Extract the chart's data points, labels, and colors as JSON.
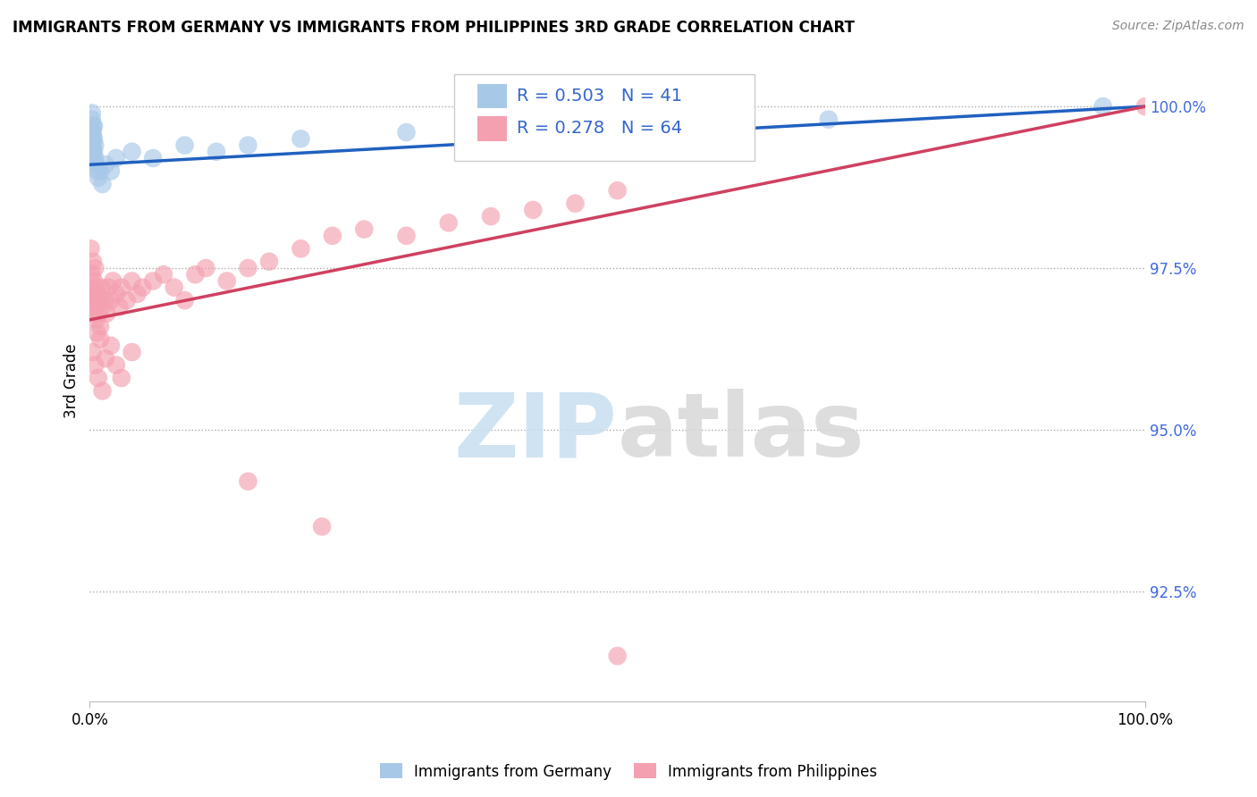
{
  "title": "IMMIGRANTS FROM GERMANY VS IMMIGRANTS FROM PHILIPPINES 3RD GRADE CORRELATION CHART",
  "source": "Source: ZipAtlas.com",
  "ylabel": "3rd Grade",
  "right_yticks": [
    100.0,
    97.5,
    95.0,
    92.5
  ],
  "right_ytick_labels": [
    "100.0%",
    "97.5%",
    "95.0%",
    "92.5%"
  ],
  "legend_blue_label": "Immigrants from Germany",
  "legend_pink_label": "Immigrants from Philippines",
  "R_blue": 0.503,
  "N_blue": 41,
  "R_pink": 0.278,
  "N_pink": 64,
  "blue_color": "#a8c8e8",
  "pink_color": "#f4a0b0",
  "blue_line_color": "#2060c0",
  "pink_line_color": "#d04060",
  "blue_line_y0": 99.1,
  "blue_line_y1": 100.0,
  "pink_line_y0": 96.7,
  "pink_line_y1": 100.0,
  "ylim_min": 90.8,
  "ylim_max": 100.7,
  "xlim_min": 0.0,
  "xlim_max": 1.0,
  "germany_x": [
    0.001,
    0.001,
    0.001,
    0.002,
    0.002,
    0.002,
    0.002,
    0.002,
    0.002,
    0.002,
    0.002,
    0.003,
    0.003,
    0.003,
    0.003,
    0.003,
    0.003,
    0.003,
    0.004,
    0.004,
    0.004,
    0.005,
    0.005,
    0.006,
    0.007,
    0.008,
    0.01,
    0.012,
    0.015,
    0.02,
    0.025,
    0.04,
    0.06,
    0.09,
    0.12,
    0.15,
    0.2,
    0.3,
    0.5,
    0.7,
    0.96
  ],
  "germany_y": [
    99.3,
    99.5,
    99.6,
    99.2,
    99.3,
    99.4,
    99.5,
    99.6,
    99.7,
    99.8,
    99.9,
    99.1,
    99.2,
    99.3,
    99.4,
    99.5,
    99.6,
    99.7,
    99.3,
    99.5,
    99.7,
    99.2,
    99.4,
    99.1,
    99.0,
    98.9,
    99.0,
    98.8,
    99.1,
    99.0,
    99.2,
    99.3,
    99.2,
    99.4,
    99.3,
    99.4,
    99.5,
    99.6,
    99.7,
    99.8,
    100.0
  ],
  "philippines_x": [
    0.001,
    0.001,
    0.002,
    0.002,
    0.003,
    0.003,
    0.004,
    0.004,
    0.005,
    0.005,
    0.006,
    0.006,
    0.007,
    0.007,
    0.008,
    0.008,
    0.009,
    0.01,
    0.011,
    0.012,
    0.014,
    0.016,
    0.018,
    0.02,
    0.022,
    0.025,
    0.028,
    0.03,
    0.035,
    0.04,
    0.045,
    0.05,
    0.06,
    0.07,
    0.08,
    0.09,
    0.1,
    0.11,
    0.13,
    0.15,
    0.17,
    0.2,
    0.23,
    0.26,
    0.3,
    0.34,
    0.38,
    0.42,
    0.46,
    0.5,
    0.003,
    0.005,
    0.008,
    0.01,
    0.012,
    0.015,
    0.02,
    0.025,
    0.03,
    0.04,
    0.15,
    0.22,
    0.5,
    1.0
  ],
  "philippines_y": [
    97.2,
    97.8,
    96.9,
    97.4,
    97.0,
    97.6,
    96.8,
    97.3,
    97.1,
    97.5,
    96.7,
    97.2,
    97.0,
    96.5,
    97.1,
    96.8,
    97.0,
    96.6,
    97.2,
    96.9,
    97.0,
    96.8,
    97.2,
    97.0,
    97.3,
    97.1,
    96.9,
    97.2,
    97.0,
    97.3,
    97.1,
    97.2,
    97.3,
    97.4,
    97.2,
    97.0,
    97.4,
    97.5,
    97.3,
    97.5,
    97.6,
    97.8,
    98.0,
    98.1,
    98.0,
    98.2,
    98.3,
    98.4,
    98.5,
    98.7,
    96.2,
    96.0,
    95.8,
    96.4,
    95.6,
    96.1,
    96.3,
    96.0,
    95.8,
    96.2,
    94.2,
    93.5,
    91.5,
    100.0
  ]
}
